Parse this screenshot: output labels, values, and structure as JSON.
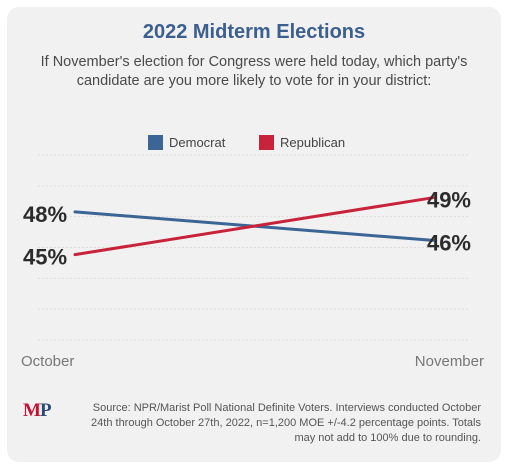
{
  "chart_data": {
    "type": "line",
    "title": "2022 Midterm Elections",
    "subtitle": "If November's election for Congress were held today, which party's candidate are you more likely to vote for in your district:",
    "categories": [
      "October",
      "November"
    ],
    "series": [
      {
        "name": "Democrat",
        "values": [
          48,
          46
        ],
        "labels": [
          "48%",
          "46%"
        ],
        "color": "#3b6594"
      },
      {
        "name": "Republican",
        "values": [
          45,
          49
        ],
        "labels": [
          "45%",
          "49%"
        ],
        "color": "#c8233a"
      }
    ],
    "ylim": [
      39,
      52
    ],
    "grid": true,
    "legend": "top-center",
    "xlabel": "",
    "ylabel": ""
  },
  "footer": {
    "logo_m": "M",
    "logo_p": "P",
    "source": "Source: NPR/Marist Poll National Definite Voters. Interviews conducted October 24th through October 27th, 2022, n=1,200 MOE +/-4.2 percentage points. Totals may not add to 100% due to rounding."
  }
}
